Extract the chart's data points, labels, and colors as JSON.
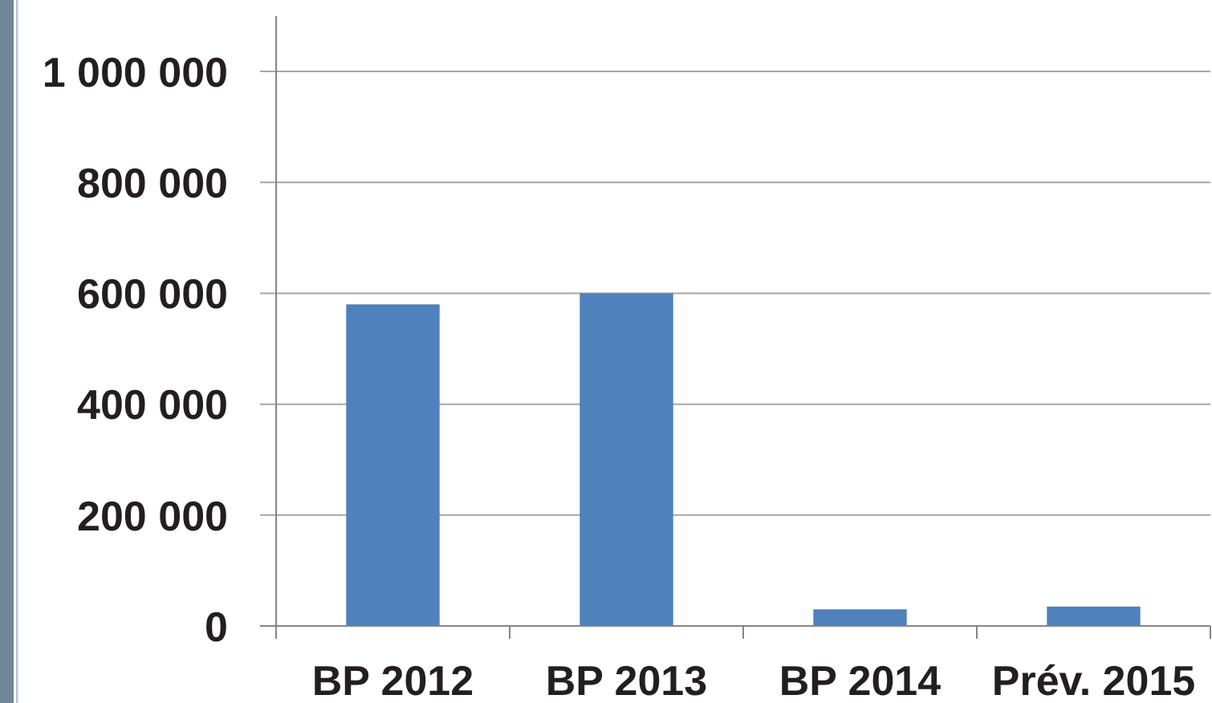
{
  "chart_data": {
    "type": "bar",
    "categories": [
      "BP 2012",
      "BP 2013",
      "BP 2014",
      "Prév. 2015"
    ],
    "values": [
      580000,
      600000,
      30000,
      35000
    ],
    "color": "#4f81bd",
    "ylim": [
      0,
      1100000
    ],
    "yticks": [
      0,
      {
        "value": 200000,
        "label": "200 000"
      },
      {
        "value": 400000,
        "label": "400 000"
      },
      {
        "value": 600000,
        "label": "600 000"
      },
      {
        "value": 800000,
        "label": "800 000"
      },
      {
        "value": 1000000,
        "label": "1 000 000"
      }
    ],
    "grid": "y"
  }
}
